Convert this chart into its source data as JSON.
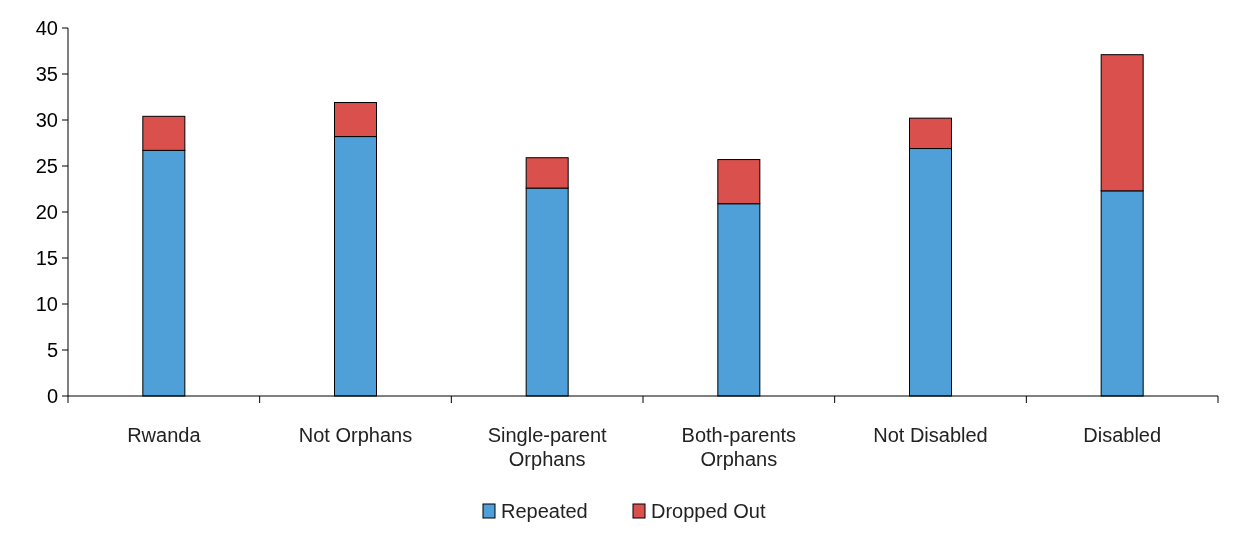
{
  "chart_data": {
    "type": "bar",
    "stacked": true,
    "categories": [
      "Rwanda",
      "Not Orphans",
      "Single-parent Orphans",
      "Both-parents Orphans",
      "Not Disabled",
      "Disabled"
    ],
    "series": [
      {
        "name": "Repeated",
        "color": "#4f9fd8",
        "values": [
          26.7,
          28.2,
          22.6,
          20.9,
          26.9,
          22.3
        ]
      },
      {
        "name": "Dropped Out",
        "color": "#d9504c",
        "values": [
          3.7,
          3.7,
          3.3,
          4.8,
          3.3,
          14.8
        ]
      }
    ],
    "ylim": [
      0,
      40
    ],
    "yticks": [
      0,
      5,
      10,
      15,
      20,
      25,
      30,
      35,
      40
    ],
    "grid": false,
    "legend": "bottom"
  }
}
